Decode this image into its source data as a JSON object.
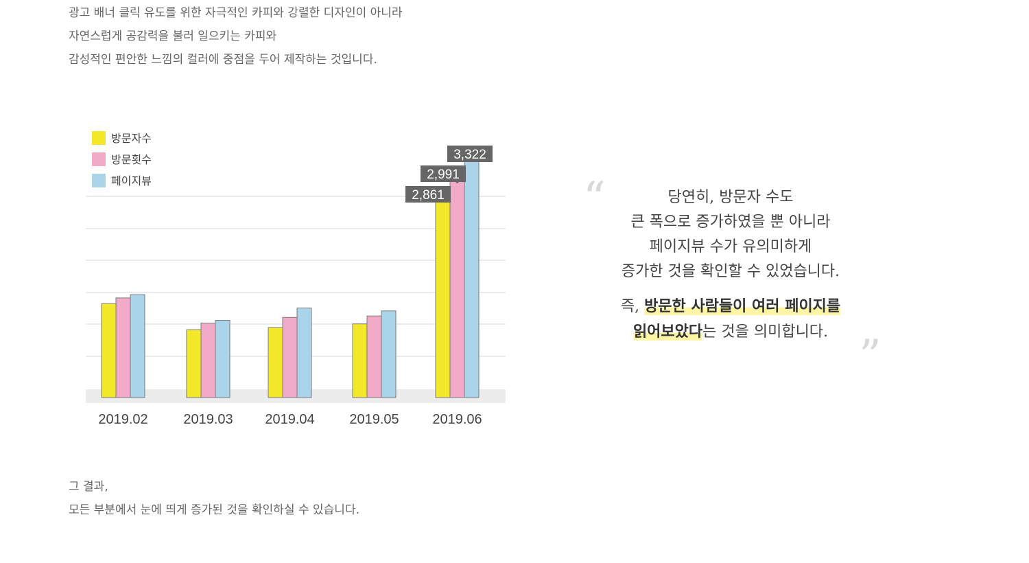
{
  "intro": {
    "lines": [
      "광고 배너 클릭 유도를 위한 자극적인 카피와 강렬한 디자인이 아니라",
      "자연스럽게 공감력을 불러 일으키는 카피와",
      "감성적인 편안한 느낌의 컬러에 중점을 두어 제작하는 것입니다."
    ]
  },
  "chart_data": {
    "type": "bar",
    "categories": [
      "2019.02",
      "2019.03",
      "2019.04",
      "2019.05",
      "2019.06"
    ],
    "series": [
      {
        "name": "방문자수",
        "color": "#f3e92a",
        "values": [
          1300,
          940,
          970,
          1020,
          2861
        ]
      },
      {
        "name": "방문횟수",
        "color": "#f2aac9",
        "values": [
          1380,
          1030,
          1110,
          1130,
          2991
        ]
      },
      {
        "name": "페이지뷰",
        "color": "#a9d4ea",
        "values": [
          1425,
          1070,
          1240,
          1200,
          3322
        ]
      }
    ],
    "data_labels": [
      "2,861",
      "2,991",
      "3,322"
    ],
    "ylim": [
      0,
      3500
    ],
    "grid": true,
    "legend": "top-left",
    "title": "",
    "xlabel": "",
    "ylabel": ""
  },
  "quote": {
    "lines": [
      "당연히, 방문자 수도",
      "큰 폭으로 증가하였을 뿐 아니라",
      "페이지뷰 수가 유의미하게",
      "증가한 것을 확인할 수 있었습니다."
    ],
    "emphasis_prefix": "즉, ",
    "emphasis_line1": "방문한 사람들이 여러 페이지를",
    "emphasis_line2": "읽어보았다",
    "emphasis_suffix": "는 것을 의미합니다."
  },
  "outro": {
    "lines": [
      "그 결과,",
      "모든 부분에서 눈에 띄게 증가된 것을 확인하실 수 있습니다."
    ]
  }
}
